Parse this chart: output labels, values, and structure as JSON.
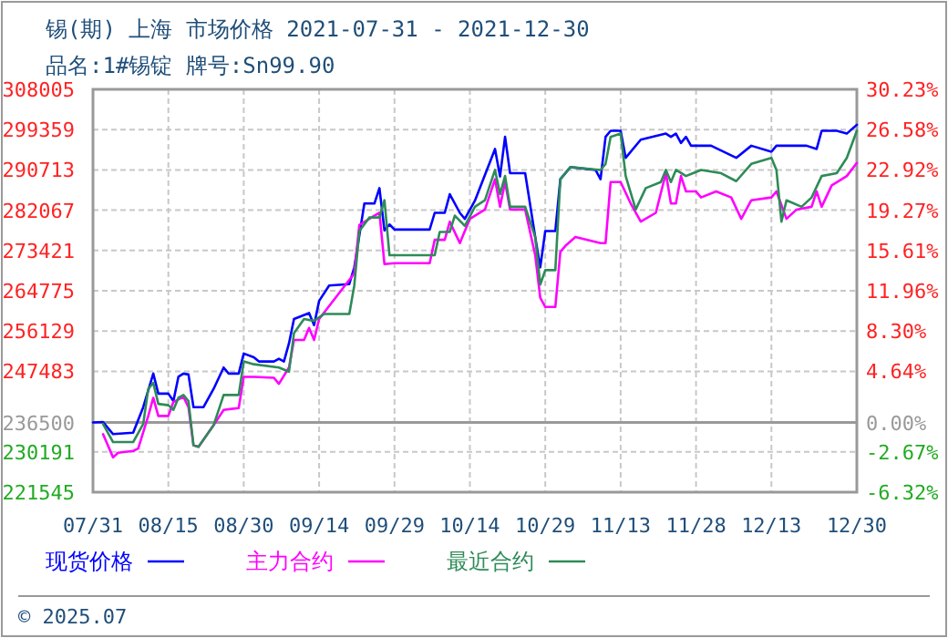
{
  "chart_data": {
    "type": "line",
    "title": "锡(期) 上海 市场价格 2021-07-31 - 2021-12-30",
    "subtitle": "品名:1#锡锭 牌号:Sn99.90",
    "xlim": [
      "2021-07-31",
      "2021-12-30"
    ],
    "xticks": [
      {
        "value": "2021-07-31",
        "label": "07/31"
      },
      {
        "value": "2021-08-15",
        "label": "08/15"
      },
      {
        "value": "2021-08-30",
        "label": "08/30"
      },
      {
        "value": "2021-09-14",
        "label": "09/14"
      },
      {
        "value": "2021-09-29",
        "label": "09/29"
      },
      {
        "value": "2021-10-14",
        "label": "10/14"
      },
      {
        "value": "2021-10-29",
        "label": "10/29"
      },
      {
        "value": "2021-11-13",
        "label": "11/13"
      },
      {
        "value": "2021-11-28",
        "label": "11/28"
      },
      {
        "value": "2021-12-13",
        "label": "12/13"
      },
      {
        "value": "2021-12-30",
        "label": "12/30"
      }
    ],
    "ylim": [
      221545,
      308005
    ],
    "yticks": [
      221545,
      230191,
      236500,
      247483,
      256129,
      264775,
      273421,
      282067,
      290713,
      299359,
      308005
    ],
    "y2lim": [
      -6.32,
      30.23
    ],
    "y2ticks": [
      {
        "value": -6.32,
        "label": "-6.32%"
      },
      {
        "value": -2.67,
        "label": "-2.67%"
      },
      {
        "value": 0,
        "label": "0.00%"
      },
      {
        "value": 4.64,
        "label": "4.64%"
      },
      {
        "value": 8.3,
        "label": "8.30%"
      },
      {
        "value": 11.96,
        "label": "11.96%"
      },
      {
        "value": 15.61,
        "label": "15.61%"
      },
      {
        "value": 19.27,
        "label": "19.27%"
      },
      {
        "value": 22.92,
        "label": "22.92%"
      },
      {
        "value": 26.58,
        "label": "26.58%"
      },
      {
        "value": 30.23,
        "label": "30.23%"
      }
    ],
    "ref_lines": [
      {
        "axis": "y",
        "value": 236500,
        "color": "#999999"
      }
    ],
    "grid": true,
    "legend": "bottom",
    "line_style": "solid",
    "marker": "none",
    "annotations": [
      "© 2025.07"
    ],
    "series": [
      {
        "name": "现货价格",
        "color": "#0000ff",
        "x": [
          "2021-07-31",
          "2021-08-02",
          "2021-08-04",
          "2021-08-08",
          "2021-08-10",
          "2021-08-12",
          "2021-08-13",
          "2021-08-15",
          "2021-08-16",
          "2021-08-17",
          "2021-08-18",
          "2021-08-19",
          "2021-08-20",
          "2021-08-22",
          "2021-08-24",
          "2021-08-26",
          "2021-08-27",
          "2021-08-29",
          "2021-08-30",
          "2021-09-01",
          "2021-09-02",
          "2021-09-05",
          "2021-09-06",
          "2021-09-07",
          "2021-09-08",
          "2021-09-09",
          "2021-09-12",
          "2021-09-13",
          "2021-09-14",
          "2021-09-16",
          "2021-09-20",
          "2021-09-21",
          "2021-09-23",
          "2021-09-25",
          "2021-09-26",
          "2021-09-27",
          "2021-09-28",
          "2021-09-29",
          "2021-10-06",
          "2021-10-07",
          "2021-10-09",
          "2021-10-10",
          "2021-10-12",
          "2021-10-13",
          "2021-10-15",
          "2021-10-19",
          "2021-10-20",
          "2021-10-21",
          "2021-10-22",
          "2021-10-25",
          "2021-10-27",
          "2021-10-28",
          "2021-10-29",
          "2021-10-31",
          "2021-11-01",
          "2021-11-03",
          "2021-11-08",
          "2021-11-09",
          "2021-11-10",
          "2021-11-11",
          "2021-11-13",
          "2021-11-14",
          "2021-11-17",
          "2021-11-22",
          "2021-11-23",
          "2021-11-24",
          "2021-11-25",
          "2021-11-26",
          "2021-11-27",
          "2021-12-01",
          "2021-12-06",
          "2021-12-09",
          "2021-12-13",
          "2021-12-14",
          "2021-12-20",
          "2021-12-22",
          "2021-12-23",
          "2021-12-26",
          "2021-12-28",
          "2021-12-30"
        ],
        "values": [
          236500,
          236600,
          234000,
          234300,
          239800,
          247000,
          242700,
          242700,
          241100,
          246300,
          247000,
          246800,
          239800,
          239800,
          243700,
          248300,
          247000,
          247000,
          251300,
          250500,
          249600,
          249600,
          250200,
          249600,
          253500,
          258700,
          260000,
          257400,
          262600,
          265900,
          266200,
          269800,
          283500,
          283500,
          286800,
          277700,
          279000,
          277900,
          277900,
          281500,
          281500,
          285500,
          281500,
          280200,
          284100,
          295200,
          289300,
          297800,
          290000,
          290000,
          276300,
          269800,
          277600,
          277600,
          288700,
          291300,
          290700,
          288700,
          297800,
          299100,
          299100,
          293300,
          297200,
          298500,
          297800,
          298500,
          296500,
          297800,
          295900,
          295900,
          293300,
          295900,
          294600,
          295900,
          295900,
          295200,
          299100,
          299100,
          298500,
          300400
        ]
      },
      {
        "name": "主力合约",
        "color": "#ff00ff",
        "x": [
          "2021-08-02",
          "2021-08-04",
          "2021-08-05",
          "2021-08-08",
          "2021-08-09",
          "2021-08-11",
          "2021-08-12",
          "2021-08-13",
          "2021-08-15",
          "2021-08-16",
          "2021-08-18",
          "2021-08-19",
          "2021-08-20",
          "2021-08-21",
          "2021-08-24",
          "2021-08-26",
          "2021-08-29",
          "2021-08-30",
          "2021-09-01",
          "2021-09-05",
          "2021-09-06",
          "2021-09-08",
          "2021-09-09",
          "2021-09-11",
          "2021-09-12",
          "2021-09-13",
          "2021-09-14",
          "2021-09-21",
          "2021-09-22",
          "2021-09-25",
          "2021-09-26",
          "2021-09-27",
          "2021-09-29",
          "2021-10-06",
          "2021-10-07",
          "2021-10-09",
          "2021-10-10",
          "2021-10-12",
          "2021-10-14",
          "2021-10-17",
          "2021-10-19",
          "2021-10-20",
          "2021-10-21",
          "2021-10-22",
          "2021-10-25",
          "2021-10-27",
          "2021-10-28",
          "2021-10-29",
          "2021-10-31",
          "2021-11-01",
          "2021-11-02",
          "2021-11-04",
          "2021-11-09",
          "2021-11-10",
          "2021-11-11",
          "2021-11-13",
          "2021-11-15",
          "2021-11-17",
          "2021-11-20",
          "2021-11-22",
          "2021-11-23",
          "2021-11-24",
          "2021-11-25",
          "2021-11-26",
          "2021-11-28",
          "2021-11-29",
          "2021-12-02",
          "2021-12-05",
          "2021-12-07",
          "2021-12-09",
          "2021-12-13",
          "2021-12-14",
          "2021-12-16",
          "2021-12-18",
          "2021-12-21",
          "2021-12-22",
          "2021-12-23",
          "2021-12-25",
          "2021-12-27",
          "2021-12-28",
          "2021-12-30"
        ],
        "values": [
          234000,
          229000,
          230000,
          230400,
          230900,
          237900,
          241800,
          237900,
          237900,
          240900,
          242000,
          239800,
          231600,
          231300,
          235900,
          239200,
          239600,
          246300,
          246300,
          246100,
          244800,
          248300,
          254200,
          254200,
          256800,
          254200,
          258700,
          268500,
          278900,
          280900,
          281500,
          270500,
          270700,
          270700,
          275700,
          275700,
          279600,
          275000,
          280200,
          282200,
          288700,
          282800,
          288100,
          282200,
          282200,
          272400,
          263300,
          261300,
          261300,
          273100,
          274400,
          276300,
          275000,
          275000,
          288100,
          288100,
          283500,
          279600,
          281500,
          290000,
          283500,
          283500,
          289400,
          286100,
          286100,
          284800,
          286100,
          284800,
          280200,
          284200,
          284800,
          286100,
          280200,
          282200,
          282800,
          286100,
          282800,
          287400,
          288700,
          289400,
          292200
        ]
      },
      {
        "name": "最近合约",
        "color": "#2e8b57",
        "x": [
          "2021-08-02",
          "2021-08-04",
          "2021-08-08",
          "2021-08-10",
          "2021-08-11",
          "2021-08-12",
          "2021-08-13",
          "2021-08-15",
          "2021-08-16",
          "2021-08-17",
          "2021-08-18",
          "2021-08-19",
          "2021-08-20",
          "2021-08-21",
          "2021-08-24",
          "2021-08-26",
          "2021-08-29",
          "2021-08-30",
          "2021-09-01",
          "2021-09-06",
          "2021-09-08",
          "2021-09-09",
          "2021-09-11",
          "2021-09-13",
          "2021-09-15",
          "2021-09-20",
          "2021-09-21",
          "2021-09-22",
          "2021-09-24",
          "2021-09-26",
          "2021-09-27",
          "2021-09-28",
          "2021-09-29",
          "2021-10-07",
          "2021-10-08",
          "2021-10-10",
          "2021-10-11",
          "2021-10-13",
          "2021-10-15",
          "2021-10-17",
          "2021-10-19",
          "2021-10-20",
          "2021-10-21",
          "2021-10-22",
          "2021-10-25",
          "2021-10-27",
          "2021-10-28",
          "2021-10-29",
          "2021-10-31",
          "2021-11-01",
          "2021-11-03",
          "2021-11-09",
          "2021-11-10",
          "2021-11-11",
          "2021-11-13",
          "2021-11-14",
          "2021-11-16",
          "2021-11-18",
          "2021-11-21",
          "2021-11-22",
          "2021-11-23",
          "2021-11-24",
          "2021-11-26",
          "2021-11-29",
          "2021-12-03",
          "2021-12-06",
          "2021-12-09",
          "2021-12-13",
          "2021-12-14",
          "2021-12-15",
          "2021-12-16",
          "2021-12-19",
          "2021-12-21",
          "2021-12-23",
          "2021-12-26",
          "2021-12-28",
          "2021-12-30"
        ],
        "values": [
          236200,
          232300,
          232300,
          236200,
          243700,
          245000,
          240500,
          240200,
          239200,
          241800,
          242400,
          241100,
          231600,
          231300,
          235900,
          242400,
          242400,
          249600,
          249000,
          248300,
          247400,
          255700,
          258700,
          258300,
          259800,
          259800,
          265900,
          277600,
          280500,
          280500,
          284200,
          272400,
          272400,
          272400,
          277400,
          277400,
          280900,
          278700,
          282800,
          284200,
          290700,
          285500,
          289400,
          282800,
          282800,
          276300,
          266100,
          269200,
          269200,
          288700,
          291300,
          290700,
          292000,
          297800,
          298500,
          289400,
          282200,
          286800,
          288100,
          290700,
          288100,
          290700,
          289400,
          290700,
          290000,
          288300,
          292000,
          293300,
          290700,
          279600,
          284200,
          282800,
          284800,
          289400,
          290000,
          293300,
          299100
        ]
      }
    ]
  }
}
